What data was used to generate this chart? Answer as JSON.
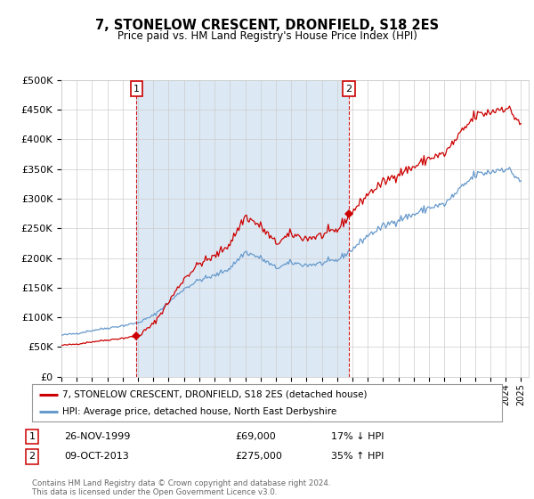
{
  "title": "7, STONELOW CRESCENT, DRONFIELD, S18 2ES",
  "subtitle": "Price paid vs. HM Land Registry's House Price Index (HPI)",
  "legend_line1": "7, STONELOW CRESCENT, DRONFIELD, S18 2ES (detached house)",
  "legend_line2": "HPI: Average price, detached house, North East Derbyshire",
  "annotation1_date": "26-NOV-1999",
  "annotation1_price": "£69,000",
  "annotation1_hpi": "17% ↓ HPI",
  "annotation2_date": "09-OCT-2013",
  "annotation2_price": "£275,000",
  "annotation2_hpi": "35% ↑ HPI",
  "sale_color": "#cc0000",
  "hpi_color": "#6699cc",
  "vline_color": "#cc0000",
  "bg_between": "#dce9f5",
  "ylim": [
    0,
    500000
  ],
  "yticks": [
    0,
    50000,
    100000,
    150000,
    200000,
    250000,
    300000,
    350000,
    400000,
    450000,
    500000
  ],
  "footer": "Contains HM Land Registry data © Crown copyright and database right 2024.\nThis data is licensed under the Open Government Licence v3.0.",
  "sale1_x": 1999.9,
  "sale1_y": 69000,
  "sale2_x": 2013.77,
  "sale2_y": 275000,
  "xlim_left": 1995.0,
  "xlim_right": 2025.5
}
